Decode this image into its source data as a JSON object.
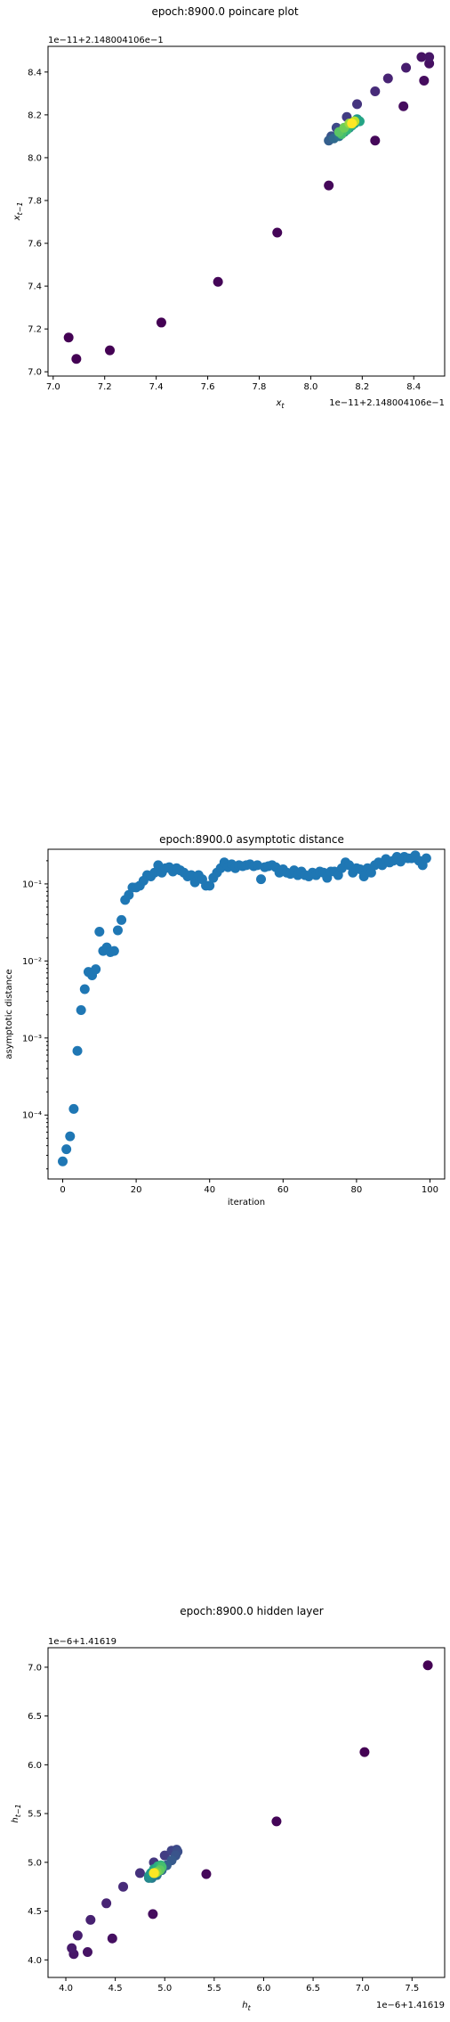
{
  "chart_data": [
    {
      "type": "scatter",
      "title": "epoch:8900.0 poincare plot",
      "xlabel": "x_t",
      "ylabel": "x_{t-1}",
      "x_offset_label": "1e−11+2.148004106e−1",
      "y_offset_label": "1e−11+2.148004106e−1",
      "xlim": [
        6.98,
        8.52
      ],
      "ylim": [
        6.98,
        8.52
      ],
      "xticks": [
        "7.0",
        "7.2",
        "7.4",
        "7.6",
        "7.8",
        "8.0",
        "8.2",
        "8.4"
      ],
      "yticks": [
        "7.0",
        "7.2",
        "7.4",
        "7.6",
        "7.8",
        "8.0",
        "8.2",
        "8.4"
      ],
      "grid": false,
      "colormap": "viridis",
      "points": [
        {
          "x": 7.06,
          "y": 7.16,
          "c": 0.0
        },
        {
          "x": 7.09,
          "y": 7.06,
          "c": 0.0
        },
        {
          "x": 7.22,
          "y": 7.1,
          "c": 0.0
        },
        {
          "x": 7.42,
          "y": 7.23,
          "c": 0.0
        },
        {
          "x": 7.64,
          "y": 7.42,
          "c": 0.01
        },
        {
          "x": 7.87,
          "y": 7.65,
          "c": 0.01
        },
        {
          "x": 8.07,
          "y": 7.87,
          "c": 0.02
        },
        {
          "x": 8.25,
          "y": 8.08,
          "c": 0.02
        },
        {
          "x": 8.36,
          "y": 8.24,
          "c": 0.03
        },
        {
          "x": 8.44,
          "y": 8.36,
          "c": 0.03
        },
        {
          "x": 8.46,
          "y": 8.44,
          "c": 0.04
        },
        {
          "x": 8.43,
          "y": 8.47,
          "c": 0.05
        },
        {
          "x": 8.46,
          "y": 8.47,
          "c": 0.06
        },
        {
          "x": 8.37,
          "y": 8.42,
          "c": 0.08
        },
        {
          "x": 8.3,
          "y": 8.37,
          "c": 0.1
        },
        {
          "x": 8.25,
          "y": 8.31,
          "c": 0.12
        },
        {
          "x": 8.18,
          "y": 8.25,
          "c": 0.15
        },
        {
          "x": 8.14,
          "y": 8.19,
          "c": 0.18
        },
        {
          "x": 8.1,
          "y": 8.14,
          "c": 0.22
        },
        {
          "x": 8.08,
          "y": 8.1,
          "c": 0.26
        },
        {
          "x": 8.07,
          "y": 8.08,
          "c": 0.3
        },
        {
          "x": 8.09,
          "y": 8.09,
          "c": 0.34
        },
        {
          "x": 8.11,
          "y": 8.1,
          "c": 0.38
        },
        {
          "x": 8.13,
          "y": 8.12,
          "c": 0.42
        },
        {
          "x": 8.15,
          "y": 8.14,
          "c": 0.46
        },
        {
          "x": 8.17,
          "y": 8.16,
          "c": 0.5
        },
        {
          "x": 8.18,
          "y": 8.18,
          "c": 0.54
        },
        {
          "x": 8.19,
          "y": 8.17,
          "c": 0.58
        },
        {
          "x": 8.16,
          "y": 8.15,
          "c": 0.62
        },
        {
          "x": 8.14,
          "y": 8.13,
          "c": 0.66
        },
        {
          "x": 8.12,
          "y": 8.11,
          "c": 0.7
        },
        {
          "x": 8.11,
          "y": 8.12,
          "c": 0.74
        },
        {
          "x": 8.13,
          "y": 8.14,
          "c": 0.78
        },
        {
          "x": 8.15,
          "y": 8.16,
          "c": 0.84
        },
        {
          "x": 8.17,
          "y": 8.17,
          "c": 0.9
        },
        {
          "x": 8.16,
          "y": 8.16,
          "c": 1.0
        }
      ]
    },
    {
      "type": "scatter",
      "title": "epoch:8900.0 asymptotic distance",
      "xlabel": "iteration",
      "ylabel": "asymptotic distance",
      "yscale": "log",
      "xlim": [
        -4,
        104
      ],
      "ylim_log10": [
        -4.83,
        -0.55
      ],
      "xticks": [
        "0",
        "20",
        "40",
        "60",
        "80",
        "100"
      ],
      "yticks": [
        "10⁻⁴",
        "10⁻³",
        "10⁻²",
        "10⁻¹"
      ],
      "ytick_values": [
        0.0001,
        0.001,
        0.01,
        0.1
      ],
      "grid": false,
      "color": "#1f77b4",
      "x": [
        0,
        1,
        2,
        3,
        4,
        5,
        6,
        7,
        8,
        9,
        10,
        11,
        12,
        13,
        14,
        15,
        16,
        17,
        18,
        19,
        20,
        21,
        22,
        23,
        24,
        25,
        26,
        27,
        28,
        29,
        30,
        31,
        32,
        33,
        34,
        35,
        36,
        37,
        38,
        39,
        40,
        41,
        42,
        43,
        44,
        45,
        46,
        47,
        48,
        49,
        50,
        51,
        52,
        53,
        54,
        55,
        56,
        57,
        58,
        59,
        60,
        61,
        62,
        63,
        64,
        65,
        66,
        67,
        68,
        69,
        70,
        71,
        72,
        73,
        74,
        75,
        76,
        77,
        78,
        79,
        80,
        81,
        82,
        83,
        84,
        85,
        86,
        87,
        88,
        89,
        90,
        91,
        92,
        93,
        94,
        95,
        96,
        97,
        98,
        99
      ],
      "y": [
        2.5e-05,
        3.6e-05,
        5.3e-05,
        0.00012,
        0.00068,
        0.0023,
        0.0043,
        0.0072,
        0.0065,
        0.0078,
        0.024,
        0.0135,
        0.015,
        0.013,
        0.0135,
        0.025,
        0.034,
        0.062,
        0.072,
        0.09,
        0.09,
        0.095,
        0.11,
        0.13,
        0.125,
        0.14,
        0.175,
        0.14,
        0.16,
        0.165,
        0.145,
        0.16,
        0.15,
        0.14,
        0.125,
        0.13,
        0.105,
        0.13,
        0.115,
        0.095,
        0.095,
        0.12,
        0.14,
        0.16,
        0.19,
        0.165,
        0.18,
        0.16,
        0.175,
        0.17,
        0.175,
        0.18,
        0.17,
        0.175,
        0.115,
        0.165,
        0.17,
        0.175,
        0.165,
        0.14,
        0.155,
        0.14,
        0.135,
        0.15,
        0.13,
        0.145,
        0.13,
        0.125,
        0.14,
        0.13,
        0.145,
        0.14,
        0.12,
        0.145,
        0.145,
        0.13,
        0.16,
        0.19,
        0.175,
        0.14,
        0.16,
        0.155,
        0.125,
        0.16,
        0.14,
        0.175,
        0.19,
        0.175,
        0.21,
        0.19,
        0.2,
        0.225,
        0.195,
        0.225,
        0.215,
        0.215,
        0.235,
        0.2,
        0.175,
        0.215
      ]
    },
    {
      "type": "scatter",
      "title": "epoch:8900.0 hidden layer",
      "xlabel": "h_t",
      "ylabel": "h_{t-1}",
      "x_offset_label": "1e−6+1.41619",
      "y_offset_label": "1e−6+1.41619",
      "xlim": [
        3.82,
        7.83
      ],
      "ylim": [
        3.82,
        7.2
      ],
      "xticks": [
        "4.0",
        "4.5",
        "5.0",
        "5.5",
        "6.0",
        "6.5",
        "7.0",
        "7.5"
      ],
      "yticks": [
        "4.0",
        "4.5",
        "5.0",
        "5.5",
        "6.0",
        "6.5",
        "7.0"
      ],
      "grid": false,
      "colormap": "viridis",
      "points": [
        {
          "x": 7.66,
          "y": 7.02,
          "c": 0.0
        },
        {
          "x": 7.02,
          "y": 6.13,
          "c": 0.0
        },
        {
          "x": 6.13,
          "y": 5.42,
          "c": 0.01
        },
        {
          "x": 5.42,
          "y": 4.88,
          "c": 0.02
        },
        {
          "x": 4.88,
          "y": 4.47,
          "c": 0.03
        },
        {
          "x": 4.47,
          "y": 4.22,
          "c": 0.04
        },
        {
          "x": 4.22,
          "y": 4.08,
          "c": 0.05
        },
        {
          "x": 4.08,
          "y": 4.06,
          "c": 0.06
        },
        {
          "x": 4.06,
          "y": 4.12,
          "c": 0.07
        },
        {
          "x": 4.12,
          "y": 4.25,
          "c": 0.08
        },
        {
          "x": 4.25,
          "y": 4.41,
          "c": 0.09
        },
        {
          "x": 4.41,
          "y": 4.58,
          "c": 0.1
        },
        {
          "x": 4.58,
          "y": 4.75,
          "c": 0.12
        },
        {
          "x": 4.75,
          "y": 4.89,
          "c": 0.14
        },
        {
          "x": 4.89,
          "y": 5.0,
          "c": 0.16
        },
        {
          "x": 5.0,
          "y": 5.07,
          "c": 0.18
        },
        {
          "x": 5.07,
          "y": 5.12,
          "c": 0.2
        },
        {
          "x": 5.12,
          "y": 5.13,
          "c": 0.22
        },
        {
          "x": 5.13,
          "y": 5.11,
          "c": 0.24
        },
        {
          "x": 5.11,
          "y": 5.07,
          "c": 0.26
        },
        {
          "x": 5.07,
          "y": 5.02,
          "c": 0.28
        },
        {
          "x": 5.02,
          "y": 4.97,
          "c": 0.3
        },
        {
          "x": 4.97,
          "y": 4.92,
          "c": 0.34
        },
        {
          "x": 4.92,
          "y": 4.87,
          "c": 0.38
        },
        {
          "x": 4.87,
          "y": 4.84,
          "c": 0.42
        },
        {
          "x": 4.84,
          "y": 4.84,
          "c": 0.46
        },
        {
          "x": 4.84,
          "y": 4.86,
          "c": 0.5
        },
        {
          "x": 4.86,
          "y": 4.89,
          "c": 0.54
        },
        {
          "x": 4.89,
          "y": 4.93,
          "c": 0.58
        },
        {
          "x": 4.93,
          "y": 4.96,
          "c": 0.62
        },
        {
          "x": 4.96,
          "y": 4.97,
          "c": 0.66
        },
        {
          "x": 4.97,
          "y": 4.95,
          "c": 0.7
        },
        {
          "x": 4.95,
          "y": 4.92,
          "c": 0.75
        },
        {
          "x": 4.92,
          "y": 4.9,
          "c": 0.8
        },
        {
          "x": 4.9,
          "y": 4.89,
          "c": 0.9
        },
        {
          "x": 4.89,
          "y": 4.89,
          "c": 1.0
        }
      ]
    }
  ]
}
